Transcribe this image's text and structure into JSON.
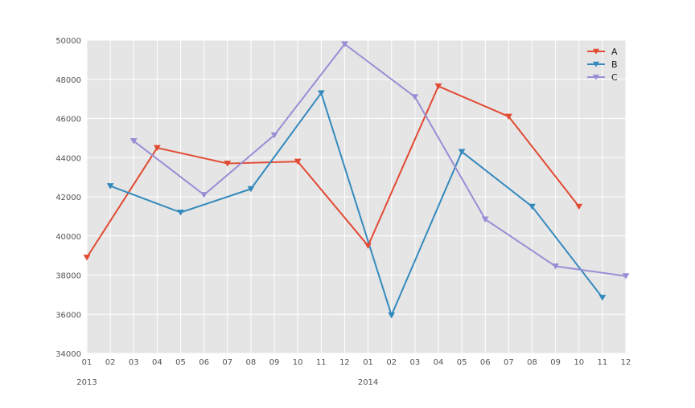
{
  "chart_data": {
    "type": "line",
    "title": "",
    "xlabel": "",
    "ylabel": "",
    "ylim": [
      34000,
      50000
    ],
    "yticks": [
      34000,
      36000,
      38000,
      40000,
      42000,
      44000,
      46000,
      48000,
      50000
    ],
    "x": [
      "2013-01",
      "2013-02",
      "2013-03",
      "2013-04",
      "2013-05",
      "2013-06",
      "2013-07",
      "2013-08",
      "2013-09",
      "2013-10",
      "2013-11",
      "2013-12",
      "2014-01",
      "2014-02",
      "2014-03",
      "2014-04",
      "2014-05",
      "2014-06",
      "2014-07",
      "2014-08",
      "2014-09",
      "2014-10",
      "2014-11",
      "2014-12"
    ],
    "xtick_labels": [
      "01",
      "02",
      "03",
      "04",
      "05",
      "06",
      "07",
      "08",
      "09",
      "10",
      "11",
      "12",
      "01",
      "02",
      "03",
      "04",
      "05",
      "06",
      "07",
      "08",
      "09",
      "10",
      "11",
      "12"
    ],
    "year_labels": [
      {
        "label": "2013",
        "x_index": 0
      },
      {
        "label": "2014",
        "x_index": 12
      }
    ],
    "grid": true,
    "legend_position": "top-right",
    "series": [
      {
        "name": "A",
        "color": "#E24A33",
        "marker": "triangle-down",
        "points": [
          [
            "2013-01",
            38900
          ],
          [
            "2013-04",
            44500
          ],
          [
            "2013-07",
            43700
          ],
          [
            "2013-10",
            43800
          ],
          [
            "2014-01",
            39500
          ],
          [
            "2014-04",
            47650
          ],
          [
            "2014-07",
            46100
          ],
          [
            "2014-10",
            41500
          ]
        ]
      },
      {
        "name": "B",
        "color": "#348ABD",
        "marker": "triangle-down",
        "points": [
          [
            "2013-02",
            42550
          ],
          [
            "2013-05",
            41200
          ],
          [
            "2013-08",
            42400
          ],
          [
            "2013-11",
            47300
          ],
          [
            "2014-02",
            35950
          ],
          [
            "2014-05",
            44300
          ],
          [
            "2014-08",
            41500
          ],
          [
            "2014-11",
            36850
          ]
        ]
      },
      {
        "name": "C",
        "color": "#988ED5",
        "marker": "triangle-down",
        "points": [
          [
            "2013-03",
            44850
          ],
          [
            "2013-06",
            42100
          ],
          [
            "2013-09",
            45150
          ],
          [
            "2013-12",
            49800
          ],
          [
            "2014-03",
            47100
          ],
          [
            "2014-06",
            40850
          ],
          [
            "2014-09",
            38450
          ],
          [
            "2014-12",
            37950
          ]
        ]
      }
    ]
  }
}
